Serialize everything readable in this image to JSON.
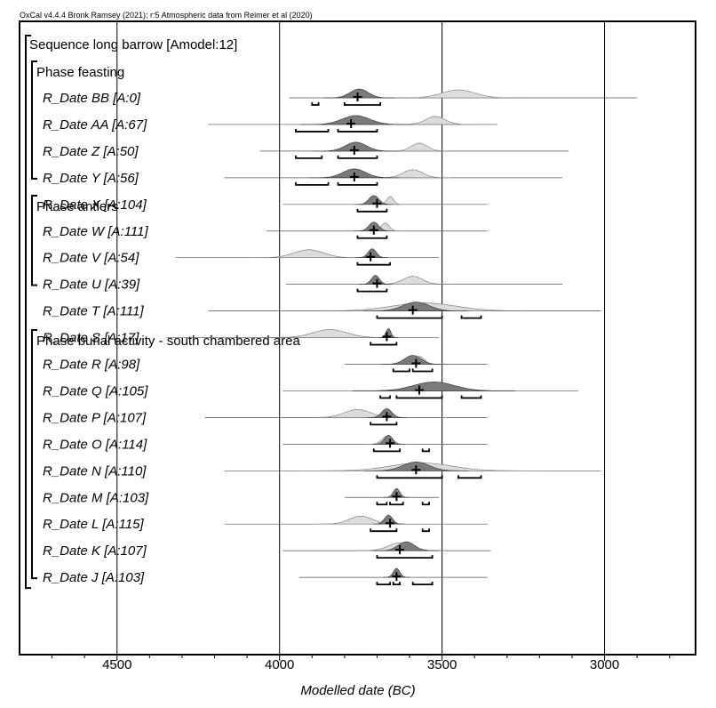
{
  "credit": "OxCal v4.4.4 Bronk Ramsey (2021); r:5 Atmospheric data from Reimer et al (2020)",
  "chart_data": {
    "type": "oxcal-multiplot",
    "title": "",
    "xlabel": "Modelled date (BC)",
    "ylabel": "",
    "xlim": [
      4800,
      2720
    ],
    "x_reversed": true,
    "xticks": [
      4500,
      4000,
      3500,
      3000
    ],
    "grid": true,
    "sequence_label": "Sequence long barrow [Amodel:12]",
    "phases": [
      {
        "label": "Phase feasting",
        "dates": [
          {
            "label": "R_Date BB [A:0]",
            "median": 3760,
            "prior_range": [
              3550,
              3350
            ],
            "posterior_range": [
              3810,
              3700
            ],
            "hpd_95": [
              [
                3900,
                3880
              ],
              [
                3800,
                3690
              ]
            ],
            "line_range": [
              3970,
              2900
            ]
          },
          {
            "label": "R_Date AA [A:67]",
            "median": 3780,
            "prior_range": [
              3580,
              3460
            ],
            "posterior_range": [
              3850,
              3680
            ],
            "hpd_95": [
              [
                3950,
                3850
              ],
              [
                3820,
                3700
              ]
            ],
            "line_range": [
              4220,
              3330
            ]
          },
          {
            "label": "R_Date Z [A:50]",
            "median": 3770,
            "prior_range": [
              3620,
              3520
            ],
            "posterior_range": [
              3830,
              3700
            ],
            "hpd_95": [
              [
                3950,
                3870
              ],
              [
                3820,
                3700
              ]
            ],
            "line_range": [
              4060,
              3110
            ]
          },
          {
            "label": "R_Date Y [A:56]",
            "median": 3770,
            "prior_range": [
              3650,
              3530
            ],
            "posterior_range": [
              3840,
              3700
            ],
            "hpd_95": [
              [
                3950,
                3850
              ],
              [
                3820,
                3700
              ]
            ],
            "line_range": [
              4170,
              3130
            ]
          }
        ]
      },
      {
        "label": "Phase antlers",
        "dates": [
          {
            "label": "R_Date X [A:104]",
            "median": 3700,
            "prior_range": [
              3680,
              3640
            ],
            "posterior_range": [
              3740,
              3680
            ],
            "hpd_95": [
              [
                3760,
                3670
              ]
            ],
            "line_range": [
              3990,
              3360
            ]
          },
          {
            "label": "R_Date W [A:111]",
            "median": 3710,
            "prior_range": [
              3700,
              3650
            ],
            "posterior_range": [
              3740,
              3680
            ],
            "hpd_95": [
              [
                3760,
                3670
              ]
            ],
            "line_range": [
              4040,
              3360
            ]
          },
          {
            "label": "R_Date V [A:54]",
            "median": 3720,
            "prior_range": [
              4000,
              3820
            ],
            "posterior_range": [
              3740,
              3690
            ],
            "hpd_95": [
              [
                3760,
                3660
              ]
            ],
            "line_range": [
              4320,
              3510
            ]
          },
          {
            "label": "R_Date U [A:39]",
            "median": 3700,
            "prior_range": [
              3650,
              3530
            ],
            "posterior_range": [
              3730,
              3680
            ],
            "hpd_95": [
              [
                3760,
                3670
              ]
            ],
            "line_range": [
              3980,
              3130
            ]
          }
        ]
      },
      {
        "label": "Phase burial activity - south chambered area",
        "dates": [
          {
            "label": "R_Date T [A:111]",
            "median": 3590,
            "prior_range": [
              3750,
              3360
            ],
            "posterior_range": [
              3660,
              3500
            ],
            "hpd_95": [
              [
                3700,
                3500
              ],
              [
                3440,
                3380
              ]
            ],
            "line_range": [
              4220,
              3010
            ]
          },
          {
            "label": "R_Date S [A:17]",
            "median": 3670,
            "prior_range": [
              3950,
              3740
            ],
            "posterior_range": [
              3680,
              3650
            ],
            "hpd_95": [
              [
                3720,
                3640
              ]
            ],
            "line_range": [
              4350,
              3510
            ]
          },
          {
            "label": "R_Date R [A:98]",
            "median": 3580,
            "prior_range": [
              3600,
              3540
            ],
            "posterior_range": [
              3640,
              3540
            ],
            "hpd_95": [
              [
                3650,
                3600
              ],
              [
                3590,
                3530
              ]
            ],
            "line_range": [
              3800,
              3360
            ]
          },
          {
            "label": "R_Date Q [A:105]",
            "median": 3570,
            "prior_range": [
              3650,
              3400
            ],
            "posterior_range": [
              3650,
              3400
            ],
            "hpd_95": [
              [
                3690,
                3660
              ],
              [
                3640,
                3500
              ],
              [
                3440,
                3380
              ]
            ],
            "line_range": [
              3990,
              3080
            ]
          },
          {
            "label": "R_Date P [A:107]",
            "median": 3670,
            "prior_range": [
              3840,
              3680
            ],
            "posterior_range": [
              3700,
              3640
            ],
            "hpd_95": [
              [
                3720,
                3640
              ]
            ],
            "line_range": [
              4230,
              3360
            ]
          },
          {
            "label": "R_Date O [A:114]",
            "median": 3660,
            "prior_range": [
              3700,
              3640
            ],
            "posterior_range": [
              3690,
              3640
            ],
            "hpd_95": [
              [
                3710,
                3630
              ],
              [
                3560,
                3540
              ]
            ],
            "line_range": [
              3990,
              3360
            ]
          },
          {
            "label": "R_Date N [A:110]",
            "median": 3580,
            "prior_range": [
              3750,
              3380
            ],
            "posterior_range": [
              3660,
              3500
            ],
            "hpd_95": [
              [
                3700,
                3500
              ],
              [
                3450,
                3380
              ]
            ],
            "line_range": [
              4170,
              3010
            ]
          },
          {
            "label": "R_Date M [A:103]",
            "median": 3640,
            "prior_range": [
              3660,
              3620
            ],
            "posterior_range": [
              3660,
              3620
            ],
            "hpd_95": [
              [
                3700,
                3670
              ],
              [
                3660,
                3620
              ],
              [
                3560,
                3540
              ]
            ],
            "line_range": [
              3800,
              3510
            ]
          },
          {
            "label": "R_Date L [A:115]",
            "median": 3660,
            "prior_range": [
              3820,
              3680
            ],
            "posterior_range": [
              3690,
              3640
            ],
            "hpd_95": [
              [
                3720,
                3640
              ],
              [
                3560,
                3540
              ]
            ],
            "line_range": [
              4170,
              3360
            ]
          },
          {
            "label": "R_Date K [A:107]",
            "median": 3630,
            "prior_range": [
              3700,
              3560
            ],
            "posterior_range": [
              3660,
              3560
            ],
            "hpd_95": [
              [
                3700,
                3530
              ]
            ],
            "line_range": [
              3990,
              3350
            ]
          },
          {
            "label": "R_Date J [A:103]",
            "median": 3640,
            "prior_range": [
              3660,
              3620
            ],
            "posterior_range": [
              3660,
              3620
            ],
            "hpd_95": [
              [
                3700,
                3660
              ],
              [
                3650,
                3630
              ],
              [
                3590,
                3530
              ]
            ],
            "line_range": [
              3940,
              3360
            ]
          }
        ]
      }
    ]
  }
}
